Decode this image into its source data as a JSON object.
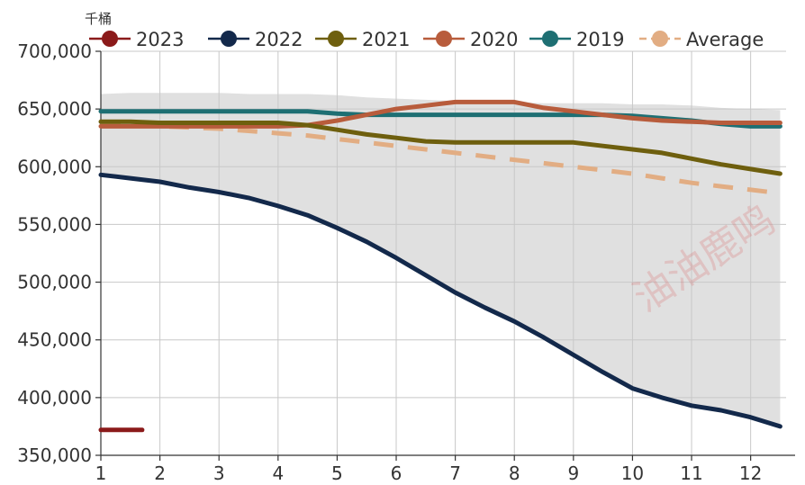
{
  "chart_data": {
    "type": "line",
    "unit_label": "千桶",
    "watermark": "油油鹿鸣",
    "x": [
      1,
      1.5,
      2,
      2.5,
      3,
      3.5,
      4,
      4.5,
      5,
      5.5,
      6,
      6.5,
      7,
      7.5,
      8,
      8.5,
      9,
      9.5,
      10,
      10.5,
      11,
      11.5,
      12,
      12.5
    ],
    "xlim": [
      1,
      12.6
    ],
    "x_ticks": [
      "1",
      "2",
      "3",
      "4",
      "5",
      "6",
      "7",
      "8",
      "9",
      "10",
      "11",
      "12"
    ],
    "ylim": [
      350000,
      700000
    ],
    "y_ticks": [
      "350,000",
      "400,000",
      "450,000",
      "500,000",
      "550,000",
      "600,000",
      "650,000",
      "700,000"
    ],
    "grid": true,
    "legend_position": "top",
    "range_band": {
      "upper": [
        663000,
        664000,
        664000,
        664000,
        664000,
        663000,
        663000,
        663000,
        662000,
        660000,
        659000,
        658000,
        657000,
        657000,
        656000,
        655000,
        655000,
        655000,
        654000,
        654000,
        653000,
        651000,
        650000,
        649000
      ],
      "lower": [
        593000,
        590000,
        587000,
        582000,
        578000,
        573000,
        566000,
        558000,
        547000,
        535000,
        521000,
        506000,
        491000,
        478000,
        466000,
        452000,
        437000,
        422000,
        408000,
        400000,
        393000,
        389000,
        383000,
        375000
      ],
      "color": "#e0e0e0"
    },
    "series": [
      {
        "name": "2023",
        "color": "#8b1a1a",
        "marker_color": "#8b1a1a",
        "dashed": false,
        "x": [
          1,
          1.7
        ],
        "values": [
          372000,
          372000
        ]
      },
      {
        "name": "2022",
        "color": "#13294b",
        "marker_color": "#13294b",
        "dashed": false,
        "values": [
          593000,
          590000,
          587000,
          582000,
          578000,
          573000,
          566000,
          558000,
          547000,
          535000,
          521000,
          506000,
          491000,
          478000,
          466000,
          452000,
          437000,
          422000,
          408000,
          400000,
          393000,
          389000,
          383000,
          375000
        ]
      },
      {
        "name": "2021",
        "color": "#6e5f0e",
        "marker_color": "#6e5f0e",
        "dashed": false,
        "values": [
          639000,
          639000,
          638000,
          638000,
          638000,
          638000,
          638000,
          636000,
          632000,
          628000,
          625000,
          622000,
          621000,
          621000,
          621000,
          621000,
          621000,
          618000,
          615000,
          612000,
          607000,
          602000,
          598000,
          594000
        ]
      },
      {
        "name": "2020",
        "color": "#b85c3c",
        "marker_color": "#b85c3c",
        "dashed": false,
        "values": [
          635000,
          635000,
          635000,
          635000,
          635000,
          635000,
          635000,
          636000,
          640000,
          645000,
          650000,
          653000,
          656000,
          656000,
          656000,
          651000,
          648000,
          645000,
          642000,
          640000,
          639000,
          638000,
          638000,
          638000
        ]
      },
      {
        "name": "2019",
        "color": "#1e6f73",
        "marker_color": "#1e6f73",
        "dashed": false,
        "values": [
          648000,
          648000,
          648000,
          648000,
          648000,
          648000,
          648000,
          648000,
          646000,
          645000,
          645000,
          645000,
          645000,
          645000,
          645000,
          645000,
          645000,
          645000,
          644000,
          642000,
          640000,
          637000,
          635000,
          635000
        ]
      },
      {
        "name": "Average",
        "color": "#e2ad83",
        "marker_color": "#e2ad83",
        "dashed": true,
        "values": [
          637000,
          636000,
          635000,
          634000,
          633000,
          631000,
          629000,
          627000,
          624000,
          621000,
          618000,
          615000,
          612000,
          609000,
          606000,
          603000,
          600000,
          597000,
          594000,
          590000,
          586000,
          583000,
          580000,
          577000
        ]
      }
    ]
  }
}
